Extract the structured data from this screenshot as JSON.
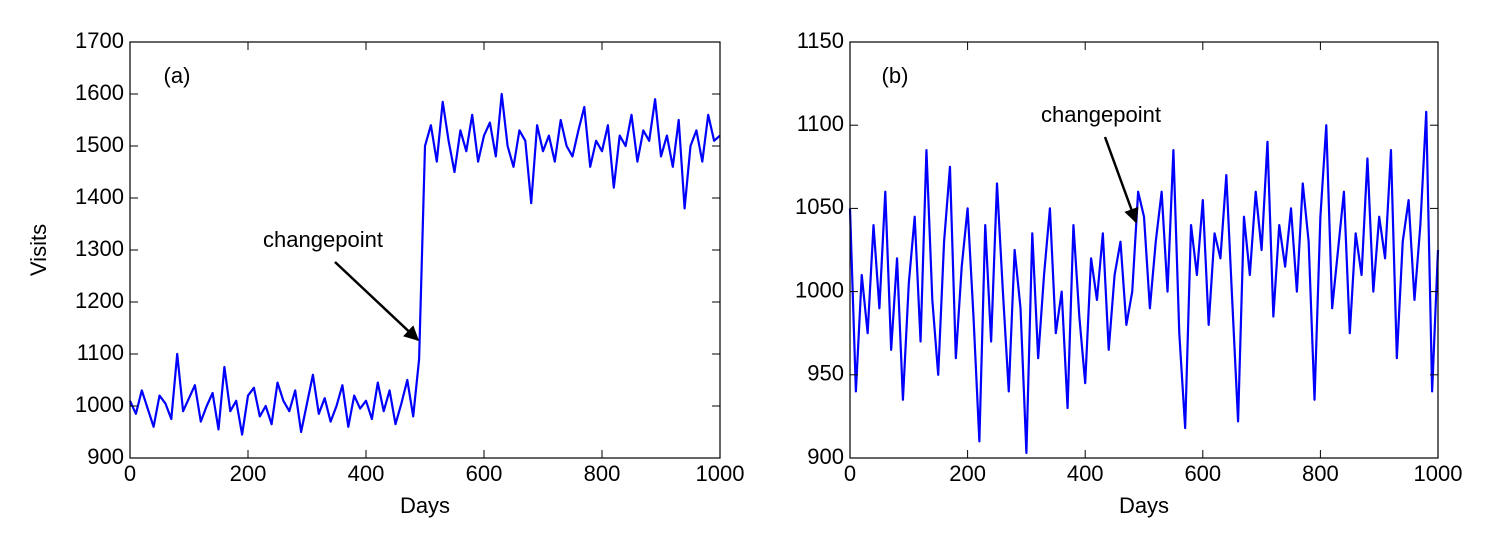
{
  "chart_data": [
    {
      "type": "line",
      "panel_label": "(a)",
      "annotation": "changepoint",
      "xlabel": "Days",
      "ylabel": "Visits",
      "xlim": [
        0,
        1000
      ],
      "xticks": [
        0,
        200,
        400,
        600,
        800,
        1000
      ],
      "ylim": [
        900,
        1700
      ],
      "yticks": [
        900,
        1000,
        1100,
        1200,
        1300,
        1400,
        1500,
        1600,
        1700
      ],
      "x": [
        0,
        10,
        20,
        30,
        40,
        50,
        60,
        70,
        80,
        90,
        100,
        110,
        120,
        130,
        140,
        150,
        160,
        170,
        180,
        190,
        200,
        210,
        220,
        230,
        240,
        250,
        260,
        270,
        280,
        290,
        300,
        310,
        320,
        330,
        340,
        350,
        360,
        370,
        380,
        390,
        400,
        410,
        420,
        430,
        440,
        450,
        460,
        470,
        480,
        490,
        500,
        510,
        520,
        530,
        540,
        550,
        560,
        570,
        580,
        590,
        600,
        610,
        620,
        630,
        640,
        650,
        660,
        670,
        680,
        690,
        700,
        710,
        720,
        730,
        740,
        750,
        760,
        770,
        780,
        790,
        800,
        810,
        820,
        830,
        840,
        850,
        860,
        870,
        880,
        890,
        900,
        910,
        920,
        930,
        940,
        950,
        960,
        970,
        980,
        990,
        1000
      ],
      "series": [
        {
          "color": "#0000ff",
          "values": [
            1010,
            985,
            1030,
            995,
            960,
            1020,
            1005,
            975,
            1100,
            990,
            1015,
            1040,
            970,
            1000,
            1025,
            955,
            1075,
            990,
            1010,
            945,
            1020,
            1035,
            980,
            1000,
            965,
            1045,
            1010,
            990,
            1030,
            950,
            1005,
            1060,
            985,
            1015,
            970,
            1000,
            1040,
            960,
            1020,
            995,
            1010,
            975,
            1045,
            990,
            1030,
            965,
            1005,
            1050,
            980,
            1090,
            1500,
            1540,
            1470,
            1585,
            1510,
            1450,
            1530,
            1490,
            1560,
            1470,
            1520,
            1545,
            1480,
            1600,
            1500,
            1460,
            1530,
            1510,
            1390,
            1540,
            1490,
            1520,
            1470,
            1550,
            1500,
            1480,
            1530,
            1575,
            1460,
            1510,
            1490,
            1540,
            1420,
            1520,
            1500,
            1560,
            1470,
            1530,
            1510,
            1590,
            1480,
            1520,
            1460,
            1550,
            1380,
            1500,
            1530,
            1470,
            1560,
            1510,
            1520
          ]
        }
      ]
    },
    {
      "type": "line",
      "panel_label": "(b)",
      "annotation": "changepoint",
      "xlabel": "Days",
      "xlim": [
        0,
        1000
      ],
      "xticks": [
        0,
        200,
        400,
        600,
        800,
        1000
      ],
      "ylim": [
        900,
        1150
      ],
      "yticks": [
        900,
        950,
        1000,
        1050,
        1100,
        1150
      ],
      "x": [
        0,
        10,
        20,
        30,
        40,
        50,
        60,
        70,
        80,
        90,
        100,
        110,
        120,
        130,
        140,
        150,
        160,
        170,
        180,
        190,
        200,
        210,
        220,
        230,
        240,
        250,
        260,
        270,
        280,
        290,
        300,
        310,
        320,
        330,
        340,
        350,
        360,
        370,
        380,
        390,
        400,
        410,
        420,
        430,
        440,
        450,
        460,
        470,
        480,
        490,
        500,
        510,
        520,
        530,
        540,
        550,
        560,
        570,
        580,
        590,
        600,
        610,
        620,
        630,
        640,
        650,
        660,
        670,
        680,
        690,
        700,
        710,
        720,
        730,
        740,
        750,
        760,
        770,
        780,
        790,
        800,
        810,
        820,
        830,
        840,
        850,
        860,
        870,
        880,
        890,
        900,
        910,
        920,
        930,
        940,
        950,
        960,
        970,
        980,
        990,
        1000
      ],
      "series": [
        {
          "color": "#0000ff",
          "values": [
            1050,
            940,
            1010,
            975,
            1040,
            990,
            1060,
            965,
            1020,
            935,
            1005,
            1045,
            970,
            1085,
            995,
            950,
            1030,
            1075,
            960,
            1015,
            1050,
            985,
            910,
            1040,
            970,
            1065,
            1000,
            940,
            1025,
            990,
            903,
            1035,
            960,
            1010,
            1050,
            975,
            1000,
            930,
            1040,
            985,
            945,
            1020,
            995,
            1035,
            965,
            1010,
            1030,
            980,
            1000,
            1060,
            1045,
            990,
            1030,
            1060,
            1000,
            1085,
            975,
            918,
            1040,
            1010,
            1055,
            980,
            1035,
            1020,
            1070,
            995,
            922,
            1045,
            1010,
            1060,
            1025,
            1090,
            985,
            1040,
            1015,
            1050,
            1000,
            1065,
            1030,
            935,
            1045,
            1100,
            990,
            1025,
            1060,
            975,
            1035,
            1010,
            1080,
            1000,
            1045,
            1020,
            1085,
            960,
            1030,
            1055,
            995,
            1040,
            1108,
            940,
            1025
          ]
        }
      ]
    }
  ]
}
